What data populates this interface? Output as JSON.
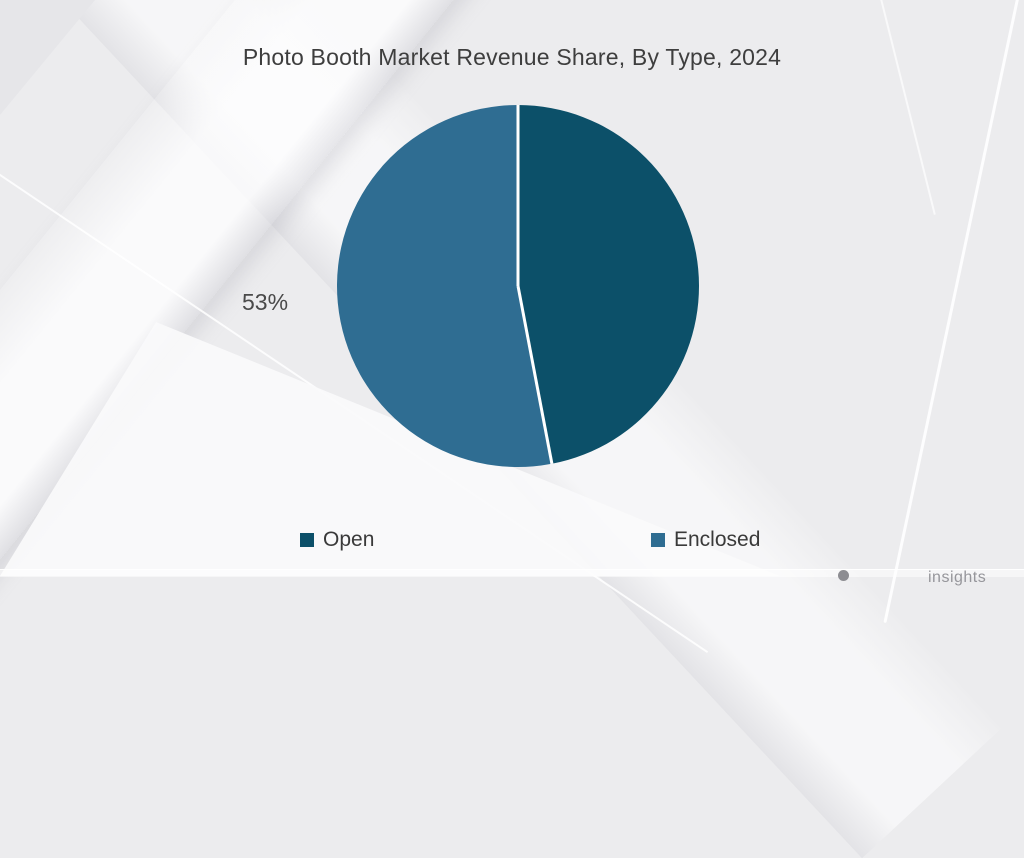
{
  "chart_data": {
    "type": "pie",
    "title": "Photo Booth Market Revenue Share, By Type, 2024",
    "series": [
      {
        "name": "Open",
        "value": 47,
        "color": "#0C5069"
      },
      {
        "name": "Enclosed",
        "value": 53,
        "color": "#2F6D92"
      }
    ],
    "unit": "%",
    "start_angle_deg": 0,
    "direction": "clockwise",
    "divider_color": "#FFFFFF",
    "percentage_label": {
      "text": "53%",
      "series": "Enclosed",
      "position": "left-of-pie"
    },
    "legend_position": "bottom"
  },
  "footer": {
    "watermark_text": "insights"
  }
}
